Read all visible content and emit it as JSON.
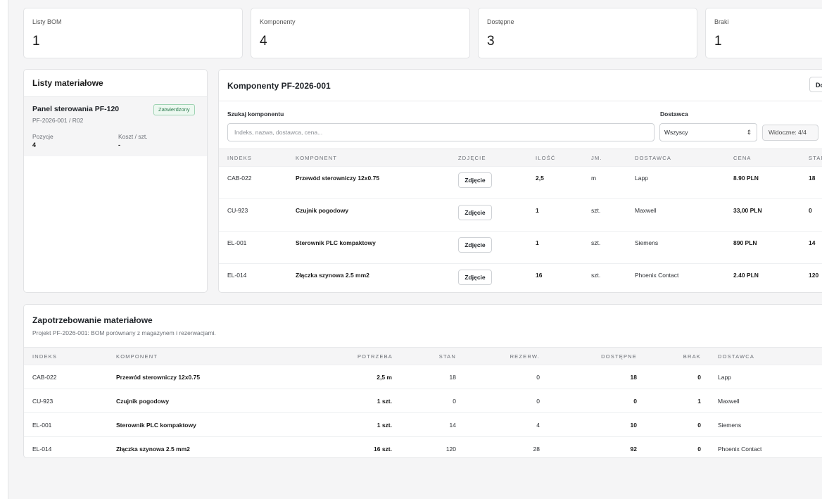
{
  "stats": [
    {
      "label": "Listy BOM",
      "value": "1"
    },
    {
      "label": "Komponenty",
      "value": "4"
    },
    {
      "label": "Dostępne",
      "value": "3"
    },
    {
      "label": "Braki",
      "value": "1"
    }
  ],
  "bom_list": {
    "title": "Listy materiałowe",
    "item": {
      "name": "Panel sterowania PF-120",
      "code": "PF-2026-001 / R02",
      "status": "Zatwierdzony",
      "positions_label": "Pozycje",
      "positions_value": "4",
      "cost_label": "Koszt / szt.",
      "cost_value": "-"
    }
  },
  "components": {
    "title": "Komponenty PF-2026-001",
    "export_label": "Do",
    "search_label": "Szukaj komponentu",
    "search_placeholder": "Indeks, nazwa, dostawca, cena...",
    "supplier_label": "Dostawca",
    "supplier_selected": "Wszyscy",
    "visible_count": "Widoczne: 4/4",
    "columns": [
      "Indeks",
      "Komponent",
      "Zdjęcie",
      "Ilość",
      "Jm.",
      "Dostawca",
      "Cena",
      "Stan"
    ],
    "photo_label": "Zdjęcie",
    "rows": [
      {
        "index": "CAB-022",
        "name": "Przewód sterowniczy 12x0.75",
        "qty": "2,5",
        "unit": "m",
        "supplier": "Lapp",
        "price": "8.90 PLN",
        "stock": "18"
      },
      {
        "index": "CU-923",
        "name": "Czujnik pogodowy",
        "qty": "1",
        "unit": "szt.",
        "supplier": "Maxwell",
        "price": "33,00 PLN",
        "stock": "0"
      },
      {
        "index": "EL-001",
        "name": "Sterownik PLC kompaktowy",
        "qty": "1",
        "unit": "szt.",
        "supplier": "Siemens",
        "price": "890 PLN",
        "stock": "14"
      },
      {
        "index": "EL-014",
        "name": "Złączka szynowa 2.5 mm2",
        "qty": "16",
        "unit": "szt.",
        "supplier": "Phoenix Contact",
        "price": "2.40 PLN",
        "stock": "120"
      }
    ]
  },
  "requirements": {
    "title": "Zapotrzebowanie materiałowe",
    "subtitle": "Projekt PF-2026-001: BOM porównany z magazynem i rezerwacjami.",
    "columns": [
      "Indeks",
      "Komponent",
      "Potrzeba",
      "Stan",
      "Rezerw.",
      "Dostępne",
      "Brak",
      "Dostawca"
    ],
    "rows": [
      {
        "index": "CAB-022",
        "name": "Przewód sterowniczy 12x0.75",
        "need": "2,5 m",
        "stock": "18",
        "reserved": "0",
        "available": "18",
        "shortage": "0",
        "supplier": "Lapp"
      },
      {
        "index": "CU-923",
        "name": "Czujnik pogodowy",
        "need": "1 szt.",
        "stock": "0",
        "reserved": "0",
        "available": "0",
        "shortage": "1",
        "supplier": "Maxwell"
      },
      {
        "index": "EL-001",
        "name": "Sterownik PLC kompaktowy",
        "need": "1 szt.",
        "stock": "14",
        "reserved": "4",
        "available": "10",
        "shortage": "0",
        "supplier": "Siemens"
      },
      {
        "index": "EL-014",
        "name": "Złączka szynowa 2.5 mm2",
        "need": "16 szt.",
        "stock": "120",
        "reserved": "28",
        "available": "92",
        "shortage": "0",
        "supplier": "Phoenix Contact"
      }
    ]
  }
}
